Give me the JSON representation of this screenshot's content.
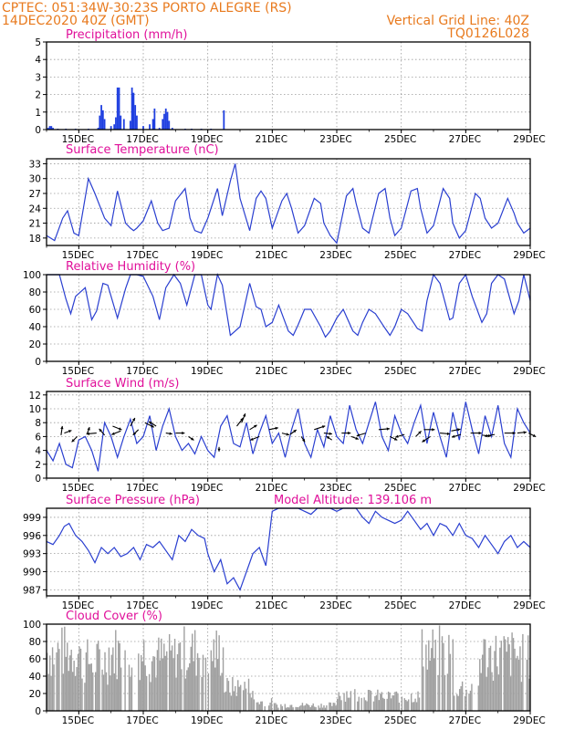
{
  "header": {
    "line1_left": "CPTEC:   051:34W-30:23S   PORTO ALEGRE (RS)",
    "line2_left": "14DEC2020 40Z (GMT)",
    "line1_right": "Vertical Grid Line: 40Z",
    "line2_right": "TQ0126L028"
  },
  "colors": {
    "header": "#e87a1e",
    "title": "#e0109a",
    "line": "#2a3fd0",
    "precip_bar": "#1f3fe0",
    "cloud": "#a0a0a0",
    "wind_arrow": "#000000"
  },
  "x_axis": {
    "labels": [
      "15DEC",
      "17DEC",
      "19DEC",
      "21DEC",
      "23DEC",
      "25DEC",
      "27DEC",
      "29DEC"
    ],
    "tick_days": [
      15,
      17,
      19,
      21,
      23,
      25,
      27,
      29
    ],
    "range_days": [
      14,
      29
    ]
  },
  "chart_data": [
    {
      "id": "precip",
      "type": "bar",
      "title": "Precipitation (mm/h)",
      "ylim": [
        0,
        5
      ],
      "yticks": [
        "0",
        "1",
        "2",
        "3",
        "4",
        "5"
      ],
      "x": [
        14.05,
        14.1,
        14.15,
        14.2,
        14.35,
        14.6,
        14.9,
        15.3,
        15.6,
        15.65,
        15.7,
        15.75,
        15.8,
        16.0,
        16.1,
        16.15,
        16.2,
        16.25,
        16.3,
        16.4,
        16.6,
        16.65,
        16.7,
        16.75,
        16.8,
        17.0,
        17.2,
        17.3,
        17.35,
        17.5,
        17.6,
        17.65,
        17.7,
        17.75,
        17.8,
        17.9,
        18.3,
        18.5,
        18.8,
        19.1,
        19.5
      ],
      "values": [
        0.1,
        0.2,
        0.2,
        0.1,
        0.05,
        0.05,
        0.05,
        0.05,
        0.1,
        0.8,
        1.4,
        1.1,
        0.6,
        0.2,
        0.3,
        0.7,
        2.4,
        2.4,
        0.8,
        0.6,
        0.5,
        2.4,
        2.1,
        1.4,
        0.8,
        0.2,
        0.3,
        0.6,
        1.2,
        0.1,
        0.6,
        0.9,
        1.2,
        1.0,
        0.5,
        0.1,
        0.05,
        0.05,
        0.05,
        0.05,
        1.1
      ]
    },
    {
      "id": "temp",
      "type": "line",
      "title": "Surface Temperature (nC)",
      "ylim": [
        16.5,
        34
      ],
      "yticks": [
        "18",
        "21",
        "24",
        "27",
        "30",
        "33"
      ],
      "x": [
        14.0,
        14.25,
        14.5,
        14.65,
        14.85,
        15.0,
        15.3,
        15.5,
        15.8,
        16.0,
        16.2,
        16.45,
        16.6,
        16.7,
        16.8,
        17.0,
        17.25,
        17.45,
        17.6,
        17.8,
        18.0,
        18.3,
        18.45,
        18.6,
        18.8,
        19.0,
        19.3,
        19.45,
        19.7,
        19.85,
        20.0,
        20.3,
        20.5,
        20.65,
        20.8,
        21.0,
        21.3,
        21.45,
        21.6,
        21.8,
        22.0,
        22.3,
        22.5,
        22.6,
        22.8,
        23.0,
        23.3,
        23.5,
        23.6,
        23.8,
        24.0,
        24.3,
        24.5,
        24.65,
        24.8,
        25.0,
        25.3,
        25.5,
        25.6,
        25.8,
        26.0,
        26.3,
        26.5,
        26.6,
        26.8,
        27.0,
        27.3,
        27.45,
        27.6,
        27.8,
        28.0,
        28.3,
        28.5,
        28.6,
        28.8,
        29.0
      ],
      "values": [
        18.5,
        17.5,
        22,
        23.5,
        19,
        18.5,
        30,
        27,
        22,
        20.5,
        27.5,
        21,
        20,
        19.5,
        20,
        21.5,
        25.5,
        21,
        19.5,
        20,
        25.5,
        28,
        22,
        19.5,
        19,
        22,
        28,
        22.5,
        29.5,
        33,
        26,
        19.5,
        26,
        27.5,
        26,
        20,
        25.5,
        27,
        24,
        19,
        20.5,
        26,
        25,
        21,
        18.5,
        17,
        26.5,
        28,
        25,
        20,
        19,
        27,
        28,
        22,
        18.5,
        20,
        27.5,
        28,
        24,
        19,
        20.5,
        28,
        26,
        21,
        18,
        19.5,
        27,
        26,
        22,
        20,
        21,
        26,
        23,
        21,
        19,
        20
      ]
    },
    {
      "id": "rh",
      "type": "line",
      "title": "Relative Humidity (%)",
      "ylim": [
        0,
        100
      ],
      "yticks": [
        "0",
        "20",
        "40",
        "60",
        "80",
        "100"
      ],
      "x": [
        14.0,
        14.4,
        14.6,
        14.75,
        14.9,
        15.2,
        15.4,
        15.55,
        15.75,
        15.9,
        16.2,
        16.45,
        16.6,
        16.8,
        17.0,
        17.3,
        17.5,
        17.7,
        17.95,
        18.15,
        18.35,
        18.6,
        18.8,
        19.0,
        19.1,
        19.3,
        19.45,
        19.7,
        19.85,
        20.0,
        20.3,
        20.5,
        20.65,
        20.8,
        21.0,
        21.2,
        21.5,
        21.65,
        21.8,
        22.0,
        22.2,
        22.5,
        22.65,
        22.8,
        23.0,
        23.2,
        23.5,
        23.65,
        23.8,
        24.0,
        24.2,
        24.5,
        24.65,
        24.8,
        25.0,
        25.2,
        25.5,
        25.65,
        25.8,
        26.0,
        26.2,
        26.5,
        26.6,
        26.8,
        27.0,
        27.2,
        27.5,
        27.65,
        27.8,
        28.0,
        28.2,
        28.5,
        28.65,
        28.8,
        29.0
      ],
      "values": [
        100,
        100,
        72,
        55,
        75,
        85,
        48,
        58,
        90,
        88,
        50,
        84,
        100,
        100,
        98,
        75,
        48,
        85,
        100,
        90,
        65,
        100,
        100,
        65,
        60,
        100,
        88,
        30,
        35,
        40,
        90,
        63,
        60,
        40,
        45,
        65,
        35,
        30,
        42,
        60,
        60,
        40,
        28,
        35,
        50,
        60,
        35,
        30,
        45,
        60,
        55,
        38,
        30,
        40,
        60,
        55,
        38,
        35,
        70,
        100,
        90,
        48,
        50,
        90,
        100,
        75,
        45,
        55,
        90,
        100,
        95,
        55,
        70,
        100,
        70
      ]
    },
    {
      "id": "wind",
      "type": "line",
      "title": "Surface Wind (m/s)",
      "ylim": [
        0,
        12.5
      ],
      "yticks": [
        "0",
        "2",
        "4",
        "6",
        "8",
        "10",
        "12"
      ],
      "x": [
        14.0,
        14.2,
        14.4,
        14.6,
        14.8,
        15.0,
        15.2,
        15.4,
        15.6,
        15.8,
        16.0,
        16.2,
        16.4,
        16.6,
        16.8,
        17.0,
        17.2,
        17.4,
        17.6,
        17.8,
        18.0,
        18.2,
        18.4,
        18.6,
        18.8,
        19.0,
        19.2,
        19.4,
        19.6,
        19.8,
        20.0,
        20.2,
        20.4,
        20.6,
        20.8,
        21.0,
        21.2,
        21.4,
        21.6,
        21.8,
        22.0,
        22.2,
        22.4,
        22.6,
        22.8,
        23.0,
        23.2,
        23.4,
        23.6,
        23.8,
        24.0,
        24.2,
        24.4,
        24.6,
        24.8,
        25.0,
        25.2,
        25.4,
        25.6,
        25.8,
        26.0,
        26.2,
        26.4,
        26.6,
        26.8,
        27.0,
        27.2,
        27.4,
        27.6,
        27.8,
        28.0,
        28.2,
        28.4,
        28.6,
        28.8,
        29.0
      ],
      "values": [
        4,
        2.5,
        5,
        2,
        1.5,
        5.5,
        6,
        4,
        1,
        8,
        6,
        3,
        6,
        8.5,
        5,
        6,
        9,
        4,
        7.5,
        10,
        6,
        4,
        5,
        3.5,
        6,
        4,
        3,
        7.5,
        9,
        5,
        4.5,
        8,
        3.5,
        6.5,
        9,
        5,
        6.5,
        3,
        7,
        10,
        5,
        3,
        7,
        4.5,
        9,
        6,
        5,
        10.5,
        7,
        5,
        8,
        11,
        6,
        4,
        9,
        6.5,
        5,
        8,
        10.5,
        5,
        9.5,
        6,
        3,
        9.5,
        5.5,
        11,
        7,
        3.5,
        9,
        6,
        10.5,
        5,
        3,
        10,
        8,
        6.5
      ],
      "arrows": [
        {
          "day": 14.45,
          "speed": 6.2,
          "dx": 1.4,
          "dy": -10
        },
        {
          "day": 14.55,
          "speed": 6.5,
          "dx": 8,
          "dy": -3
        },
        {
          "day": 14.95,
          "speed": 6.0,
          "dx": -6,
          "dy": 6
        },
        {
          "day": 15.25,
          "speed": 6.3,
          "dx": 3,
          "dy": -8
        },
        {
          "day": 15.55,
          "speed": 6.5,
          "dx": -11,
          "dy": 1
        },
        {
          "day": 15.8,
          "speed": 6.2,
          "dx": -6,
          "dy": -7
        },
        {
          "day": 16.05,
          "speed": 7.5,
          "dx": 10,
          "dy": 4
        },
        {
          "day": 16.3,
          "speed": 6.8,
          "dx": -10,
          "dy": 4
        },
        {
          "day": 16.6,
          "speed": 7.5,
          "dx": 5,
          "dy": -9
        },
        {
          "day": 16.85,
          "speed": 7.0,
          "dx": -6,
          "dy": 6
        },
        {
          "day": 17.05,
          "speed": 8.0,
          "dx": 10,
          "dy": 5
        },
        {
          "day": 17.4,
          "speed": 7.5,
          "dx": -8,
          "dy": -5
        },
        {
          "day": 17.7,
          "speed": 6.5,
          "dx": 7,
          "dy": 1
        },
        {
          "day": 18.0,
          "speed": 6.5,
          "dx": 10,
          "dy": 0
        },
        {
          "day": 18.4,
          "speed": 6.0,
          "dx": 6,
          "dy": 4
        },
        {
          "day": 19.35,
          "speed": 4.5,
          "dx": 0,
          "dy": 5
        },
        {
          "day": 19.9,
          "speed": 7.5,
          "dx": 7,
          "dy": -9
        },
        {
          "day": 20.05,
          "speed": 8.0,
          "dx": 4,
          "dy": -10
        },
        {
          "day": 20.3,
          "speed": 7.0,
          "dx": 8,
          "dy": -5
        },
        {
          "day": 20.6,
          "speed": 6.0,
          "dx": -10,
          "dy": 4
        },
        {
          "day": 20.9,
          "speed": 7.0,
          "dx": 10,
          "dy": -2
        },
        {
          "day": 21.3,
          "speed": 6.5,
          "dx": 8,
          "dy": 2
        },
        {
          "day": 21.55,
          "speed": 6.3,
          "dx": 7,
          "dy": -5
        },
        {
          "day": 21.9,
          "speed": 6.0,
          "dx": 4,
          "dy": 6
        },
        {
          "day": 22.3,
          "speed": 7.0,
          "dx": 12,
          "dy": -4
        },
        {
          "day": 22.6,
          "speed": 6.5,
          "dx": 9,
          "dy": 1
        },
        {
          "day": 22.85,
          "speed": 5.5,
          "dx": -6,
          "dy": -4
        },
        {
          "day": 23.15,
          "speed": 6.5,
          "dx": 10,
          "dy": 0
        },
        {
          "day": 23.45,
          "speed": 6.0,
          "dx": 8,
          "dy": 3
        },
        {
          "day": 23.9,
          "speed": 6.5,
          "dx": -10,
          "dy": 3
        },
        {
          "day": 24.3,
          "speed": 7.0,
          "dx": 12,
          "dy": -1
        },
        {
          "day": 24.65,
          "speed": 6.0,
          "dx": 8,
          "dy": 4
        },
        {
          "day": 25.1,
          "speed": 6.3,
          "dx": -10,
          "dy": 3
        },
        {
          "day": 25.45,
          "speed": 6.0,
          "dx": 6,
          "dy": -6
        },
        {
          "day": 25.7,
          "speed": 7.0,
          "dx": 12,
          "dy": 0
        },
        {
          "day": 25.9,
          "speed": 6.0,
          "dx": -9,
          "dy": 6
        },
        {
          "day": 26.2,
          "speed": 6.5,
          "dx": 11,
          "dy": 1
        },
        {
          "day": 26.55,
          "speed": 6.8,
          "dx": 10,
          "dy": -2
        },
        {
          "day": 26.85,
          "speed": 6.3,
          "dx": -10,
          "dy": 3
        },
        {
          "day": 27.15,
          "speed": 6.5,
          "dx": 12,
          "dy": 0
        },
        {
          "day": 27.5,
          "speed": 6.2,
          "dx": 10,
          "dy": 1
        },
        {
          "day": 27.9,
          "speed": 6.3,
          "dx": -11,
          "dy": 2
        },
        {
          "day": 28.2,
          "speed": 6.5,
          "dx": 12,
          "dy": 0
        },
        {
          "day": 28.6,
          "speed": 6.5,
          "dx": 10,
          "dy": -1
        },
        {
          "day": 28.95,
          "speed": 6.5,
          "dx": 8,
          "dy": 4
        }
      ]
    },
    {
      "id": "pressure",
      "type": "line",
      "title": "Surface Pressure (hPa)",
      "ylim": [
        986,
        1000.5
      ],
      "yticks": [
        "987",
        "990",
        "993",
        "996",
        "999"
      ],
      "x": [
        14.0,
        14.2,
        14.4,
        14.55,
        14.7,
        14.9,
        15.1,
        15.3,
        15.5,
        15.7,
        15.9,
        16.1,
        16.3,
        16.5,
        16.7,
        16.9,
        17.1,
        17.3,
        17.5,
        17.7,
        17.9,
        18.1,
        18.3,
        18.5,
        18.7,
        18.9,
        19.0,
        19.2,
        19.4,
        19.6,
        19.8,
        20.0,
        20.2,
        20.4,
        20.6,
        20.8,
        21.0,
        21.2,
        21.4,
        21.6,
        21.8,
        22.0,
        22.2,
        22.4,
        22.6,
        22.8,
        23.0,
        23.2,
        23.4,
        23.6,
        23.8,
        24.0,
        24.2,
        24.4,
        24.6,
        24.8,
        25.0,
        25.2,
        25.4,
        25.6,
        25.8,
        26.0,
        26.2,
        26.4,
        26.6,
        26.8,
        27.0,
        27.2,
        27.4,
        27.6,
        27.8,
        28.0,
        28.2,
        28.4,
        28.6,
        28.8,
        29.0
      ],
      "values": [
        995,
        994.5,
        996,
        997.5,
        998,
        996,
        995,
        993.5,
        991.5,
        994,
        993,
        994,
        992.5,
        993,
        994,
        992,
        994.5,
        994,
        995,
        993.5,
        992,
        996,
        995,
        997,
        996,
        995.5,
        993,
        990,
        992,
        988,
        989,
        987,
        990,
        993,
        994,
        991,
        1000,
        1000.5,
        1000.5,
        1000.5,
        1000.5,
        1000,
        999.5,
        1000.5,
        1000.5,
        1000.5,
        1000,
        1000.5,
        1000.5,
        1000.5,
        999,
        998,
        1000,
        999,
        998.5,
        998,
        998.5,
        1000,
        998.5,
        997,
        998,
        996,
        998,
        997.5,
        996,
        998,
        996,
        995.5,
        994,
        996,
        994.5,
        993,
        995,
        996,
        994,
        995,
        994
      ]
    },
    {
      "id": "cloud",
      "type": "area",
      "title": "Cloud Cover (%)",
      "ylim": [
        0,
        100
      ],
      "yticks": [
        "0",
        "20",
        "40",
        "60",
        "80",
        "100"
      ]
    }
  ],
  "annotations": {
    "model_altitude": "Model Altitude: 139.106 m"
  }
}
